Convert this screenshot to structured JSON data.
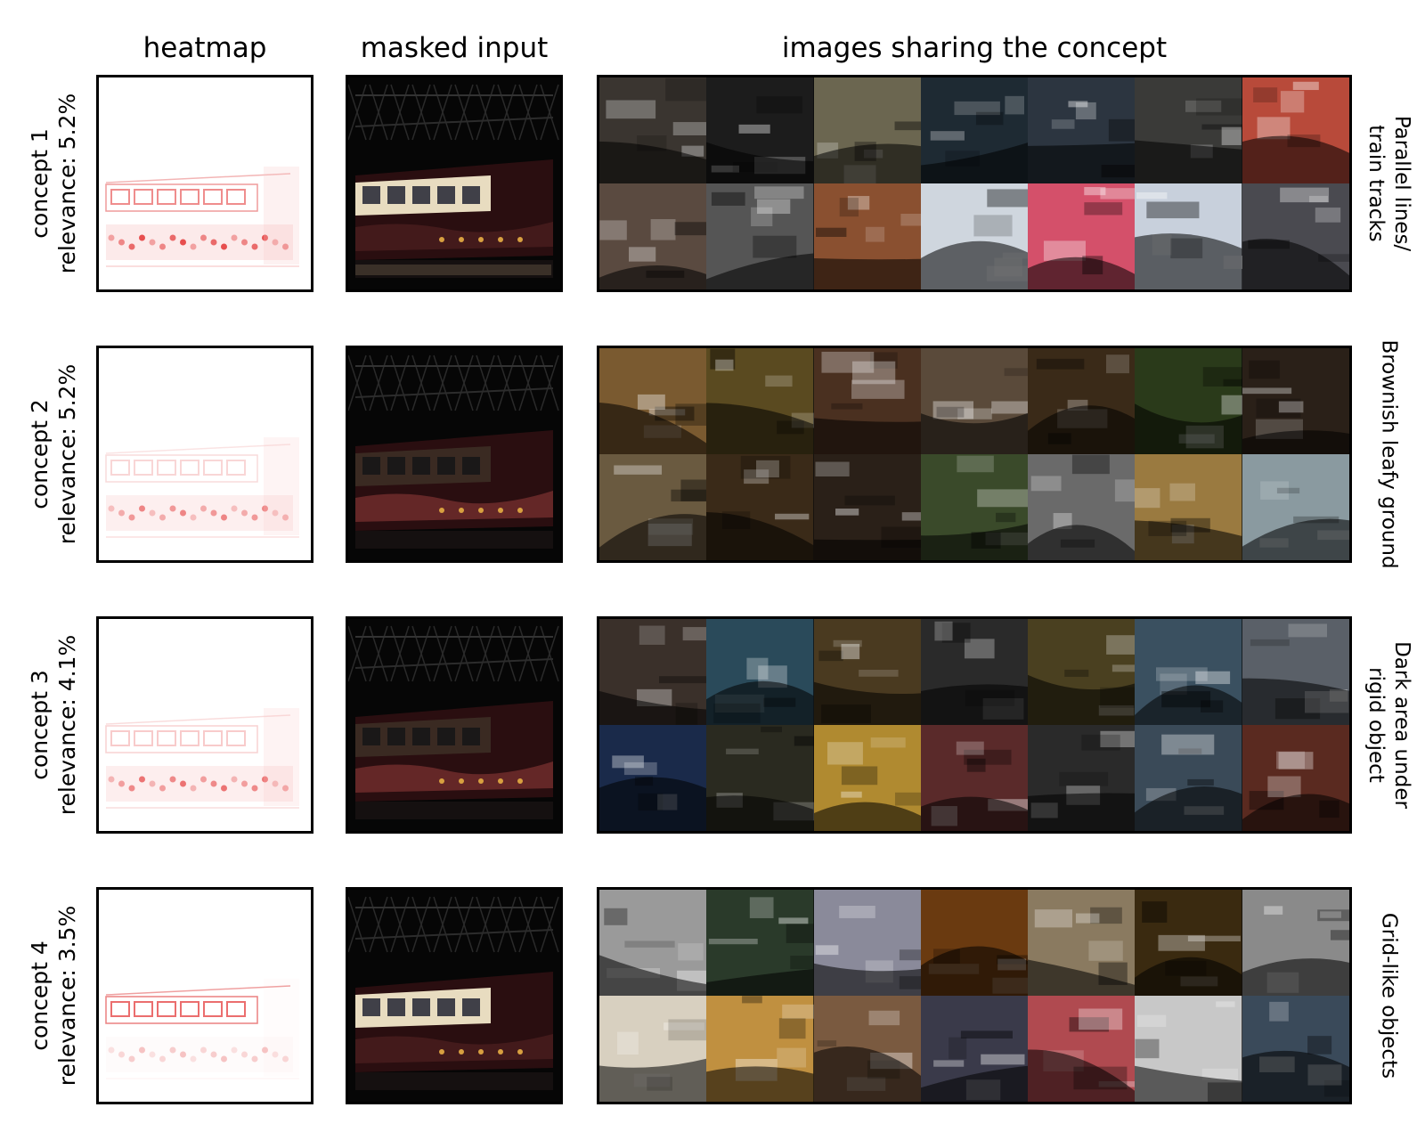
{
  "headers": {
    "heatmap": "heatmap",
    "masked": "masked input",
    "images": "images sharing the concept"
  },
  "rows": [
    {
      "concept": "concept 1",
      "relevance": "relevance: 5.2%",
      "description": [
        "Parallel lines/",
        "train tracks"
      ],
      "highlight": "train-window-band",
      "tile_colors": [
        "#3a3530",
        "#1c1c1c",
        "#6b6650",
        "#1e2a33",
        "#2c3540",
        "#3a3a38",
        "#b84a3a",
        "#5a4a40",
        "#555555",
        "#8a5030",
        "#cfd6de",
        "#d4506a",
        "#c8d0dc",
        "#4a4a50"
      ]
    },
    {
      "concept": "concept 2",
      "relevance": "relevance: 5.2%",
      "description": [
        "Brownish leafy ground"
      ],
      "highlight": "train-undercarriage",
      "tile_colors": [
        "#7a5a30",
        "#5a4a20",
        "#4a3020",
        "#5a4a3a",
        "#3a2a18",
        "#2a3a1a",
        "#2a2018",
        "#6a5a40",
        "#3a2a18",
        "#2a2018",
        "#3a4a2a",
        "#6a6a6a",
        "#9a7a40",
        "#8a9aa0"
      ]
    },
    {
      "concept": "concept 3",
      "relevance": "relevance: 4.1%",
      "description": [
        "Dark area under",
        "rigid object"
      ],
      "highlight": "train-lower-body",
      "tile_colors": [
        "#3a302a",
        "#2a4a5a",
        "#4a3a20",
        "#2a2a2a",
        "#4a4020",
        "#3a5060",
        "#5a6068",
        "#1a2a4a",
        "#2a2a20",
        "#b08a30",
        "#5a2a2a",
        "#2a2a2a",
        "#3a4a58",
        "#5a2a20"
      ]
    },
    {
      "concept": "concept 4",
      "relevance": "relevance: 3.5%",
      "description": [
        "Grid-like objects"
      ],
      "highlight": "train-windows",
      "tile_colors": [
        "#9a9a9a",
        "#2a3a2a",
        "#8a8a9a",
        "#6a3a10",
        "#8a7a60",
        "#3a2a10",
        "#8a8a8a",
        "#d8d0c0",
        "#c09040",
        "#7a5a40",
        "#3a3a4a",
        "#b04a50",
        "#c8c8c8",
        "#3a4a5a"
      ]
    }
  ]
}
